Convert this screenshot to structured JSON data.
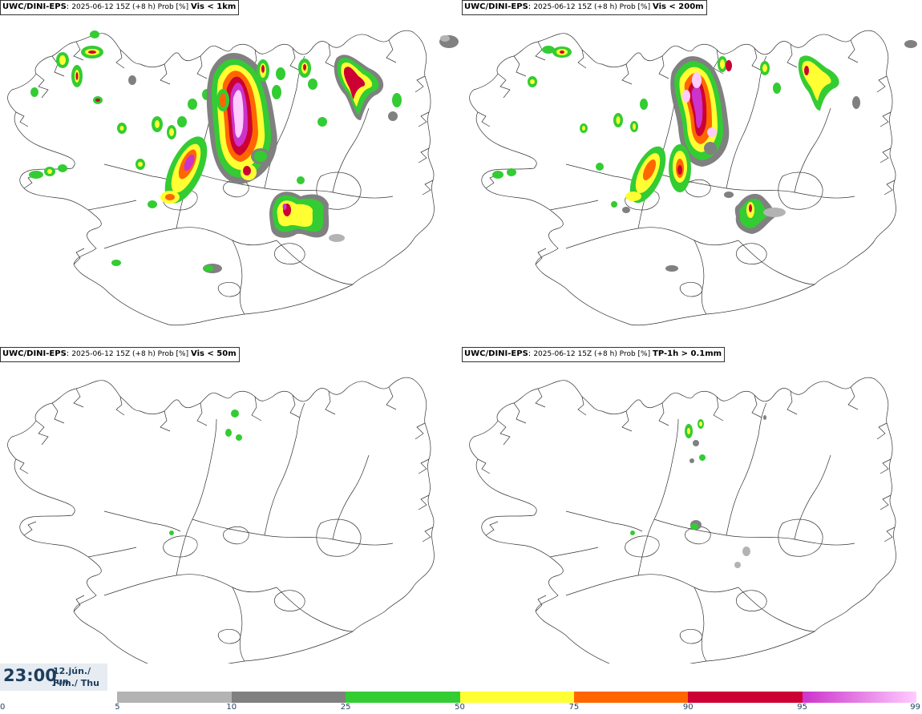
{
  "panels": [
    {
      "source": "UWC/DINI-EPS",
      "run": "2025-06-12 15Z (+8 h) Prob [%]",
      "parameter": "Vis < 1km"
    },
    {
      "source": "UWC/DINI-EPS",
      "run": "2025-06-12 15Z (+8 h) Prob [%]",
      "parameter": "Vis < 200m"
    },
    {
      "source": "UWC/DINI-EPS",
      "run": "2025-06-12 15Z (+8 h) Prob [%]",
      "parameter": "Vis < 50m"
    },
    {
      "source": "UWC/DINI-EPS",
      "run": "2025-06-12 15Z (+8 h) Prob [%]",
      "parameter": "TP-1h > 0.1mm"
    }
  ],
  "valid_time": {
    "time": "23:00",
    "date_line1": "12.jún./ Jun",
    "date_line2": "Fim./ Thu"
  },
  "legend": {
    "ticks": [
      "0",
      "5",
      "10",
      "25",
      "50",
      "75",
      "90",
      "95",
      "99"
    ],
    "bands": [
      {
        "from": "5",
        "to": "10",
        "color": "#b3b3b3"
      },
      {
        "from": "10",
        "to": "25",
        "color": "#808080"
      },
      {
        "from": "25",
        "to": "50",
        "color": "#33cc33"
      },
      {
        "from": "50",
        "to": "75",
        "color": "#ffff33"
      },
      {
        "from": "75",
        "to": "90",
        "color": "#ff6600"
      },
      {
        "from": "90",
        "to": "95",
        "color": "#cc0033"
      },
      {
        "from": "95",
        "to": "99",
        "color": "#cc33cc",
        "to_color": "#ffccff"
      }
    ]
  }
}
